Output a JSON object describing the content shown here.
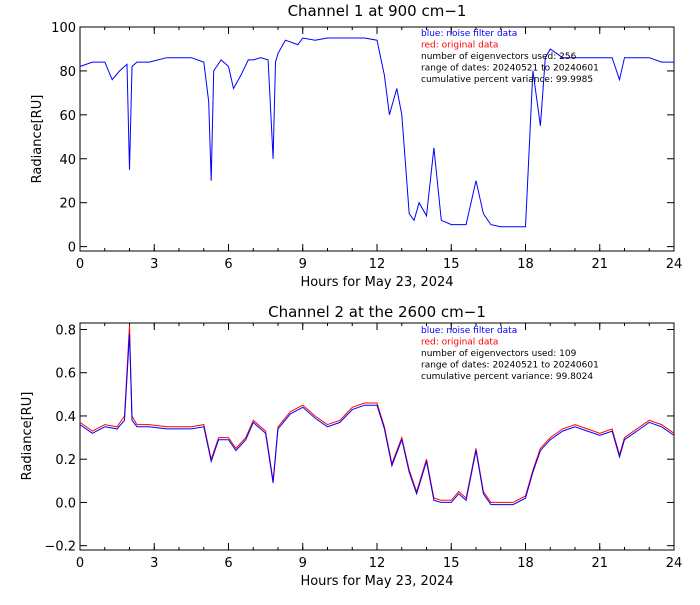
{
  "chart_data": [
    {
      "type": "line",
      "title": "Channel 1 at 900 cm−1",
      "xlabel": "Hours for May 23, 2024",
      "ylabel": "Radiance[RU]",
      "xlim": [
        0,
        24
      ],
      "ylim": [
        -2,
        100
      ],
      "xticks": [
        "0",
        "3",
        "6",
        "9",
        "12",
        "15",
        "18",
        "21",
        "24"
      ],
      "yticks": [
        "0",
        "20",
        "40",
        "60",
        "80",
        "100"
      ],
      "legend_position": "top-right",
      "annotations": [
        {
          "text": "blue: noise filter data",
          "color": "#0000ff"
        },
        {
          "text": "red: original data",
          "color": "#ff0000"
        },
        {
          "text": "number of eigenvectors used:       256",
          "color": "#000000"
        },
        {
          "text": "range of dates: 20240521 to 20240601",
          "color": "#000000"
        },
        {
          "text": "cumulative percent variance:  99.9985",
          "color": "#000000"
        }
      ],
      "series": [
        {
          "name": "blue: noise filter data",
          "color": "#0000ff",
          "x": [
            0,
            0.5,
            1.0,
            1.3,
            1.6,
            1.9,
            2.0,
            2.1,
            2.3,
            2.8,
            3.5,
            4.5,
            5.0,
            5.2,
            5.3,
            5.4,
            5.7,
            6.0,
            6.2,
            6.5,
            6.8,
            7.0,
            7.3,
            7.6,
            7.8,
            7.9,
            8.0,
            8.3,
            8.8,
            9.0,
            9.5,
            10.0,
            10.5,
            11.0,
            11.5,
            12.0,
            12.3,
            12.5,
            12.8,
            13.0,
            13.3,
            13.5,
            13.7,
            14.0,
            14.3,
            14.6,
            15.0,
            15.3,
            15.6,
            16.0,
            16.3,
            16.6,
            17.0,
            17.5,
            17.8,
            18.0,
            18.3,
            18.6,
            18.8,
            19.0,
            19.5,
            20.0,
            20.5,
            21.0,
            21.5,
            21.8,
            22.0,
            22.5,
            23.0,
            23.5,
            24.0
          ],
          "values": [
            82,
            84,
            84,
            76,
            80,
            83,
            35,
            82,
            84,
            84,
            86,
            86,
            84,
            66,
            30,
            80,
            85,
            82,
            72,
            78,
            85,
            85,
            86,
            85,
            40,
            84,
            88,
            94,
            92,
            95,
            94,
            95,
            95,
            95,
            95,
            94,
            78,
            60,
            72,
            60,
            15,
            12,
            20,
            14,
            45,
            12,
            10,
            10,
            10,
            30,
            15,
            10,
            9,
            9,
            9,
            9,
            80,
            55,
            86,
            90,
            86,
            86,
            86,
            86,
            86,
            76,
            86,
            86,
            86,
            84,
            84
          ]
        }
      ]
    },
    {
      "type": "line",
      "title": "Channel 2 at the 2600 cm−1",
      "xlabel": "Hours for May 23, 2024",
      "ylabel": "Radiance[RU]",
      "xlim": [
        0,
        24
      ],
      "ylim": [
        -0.22,
        0.83
      ],
      "xticks": [
        "0",
        "3",
        "6",
        "9",
        "12",
        "15",
        "18",
        "21",
        "24"
      ],
      "yticks": [
        "−0.2",
        "0.0",
        "0.2",
        "0.4",
        "0.6",
        "0.8"
      ],
      "legend_position": "top-right",
      "annotations": [
        {
          "text": "blue: noise filter data",
          "color": "#0000ff"
        },
        {
          "text": "red: original data",
          "color": "#ff0000"
        },
        {
          "text": "number of eigenvectors used:       109",
          "color": "#000000"
        },
        {
          "text": "range of dates: 20240521 to 20240601",
          "color": "#000000"
        },
        {
          "text": "cumulative percent variance:  99.8024",
          "color": "#000000"
        }
      ],
      "series": [
        {
          "name": "red: original data",
          "color": "#ff0000",
          "x": [
            0,
            0.5,
            1.0,
            1.5,
            1.8,
            2.0,
            2.1,
            2.3,
            2.8,
            3.5,
            4.5,
            5.0,
            5.3,
            5.6,
            6.0,
            6.3,
            6.7,
            7.0,
            7.5,
            7.8,
            8.0,
            8.5,
            9.0,
            9.5,
            10.0,
            10.5,
            11.0,
            11.5,
            12.0,
            12.3,
            12.6,
            13.0,
            13.3,
            13.6,
            14.0,
            14.3,
            14.6,
            15.0,
            15.3,
            15.6,
            16.0,
            16.3,
            16.6,
            17.0,
            17.5,
            18.0,
            18.3,
            18.6,
            19.0,
            19.5,
            20.0,
            20.5,
            21.0,
            21.5,
            21.8,
            22.0,
            22.5,
            23.0,
            23.5,
            24.0
          ],
          "values": [
            0.37,
            0.33,
            0.36,
            0.35,
            0.4,
            0.82,
            0.4,
            0.36,
            0.36,
            0.35,
            0.35,
            0.36,
            0.2,
            0.3,
            0.3,
            0.25,
            0.3,
            0.38,
            0.33,
            0.1,
            0.35,
            0.42,
            0.45,
            0.4,
            0.36,
            0.38,
            0.44,
            0.46,
            0.46,
            0.35,
            0.18,
            0.3,
            0.15,
            0.05,
            0.2,
            0.02,
            0.01,
            0.01,
            0.05,
            0.02,
            0.25,
            0.05,
            0.0,
            0.0,
            0.0,
            0.03,
            0.15,
            0.25,
            0.3,
            0.34,
            0.36,
            0.34,
            0.32,
            0.34,
            0.22,
            0.3,
            0.34,
            0.38,
            0.36,
            0.32
          ]
        },
        {
          "name": "blue: noise filter data",
          "color": "#0000ff",
          "x": [
            0,
            0.5,
            1.0,
            1.5,
            1.8,
            2.0,
            2.1,
            2.3,
            2.8,
            3.5,
            4.5,
            5.0,
            5.3,
            5.6,
            6.0,
            6.3,
            6.7,
            7.0,
            7.5,
            7.8,
            8.0,
            8.5,
            9.0,
            9.5,
            10.0,
            10.5,
            11.0,
            11.5,
            12.0,
            12.3,
            12.6,
            13.0,
            13.3,
            13.6,
            14.0,
            14.3,
            14.6,
            15.0,
            15.3,
            15.6,
            16.0,
            16.3,
            16.6,
            17.0,
            17.5,
            18.0,
            18.3,
            18.6,
            19.0,
            19.5,
            20.0,
            20.5,
            21.0,
            21.5,
            21.8,
            22.0,
            22.5,
            23.0,
            23.5,
            24.0
          ],
          "values": [
            0.36,
            0.32,
            0.35,
            0.34,
            0.38,
            0.78,
            0.38,
            0.35,
            0.35,
            0.34,
            0.34,
            0.35,
            0.19,
            0.29,
            0.29,
            0.24,
            0.29,
            0.37,
            0.32,
            0.09,
            0.34,
            0.41,
            0.44,
            0.39,
            0.35,
            0.37,
            0.43,
            0.45,
            0.45,
            0.34,
            0.17,
            0.29,
            0.14,
            0.04,
            0.19,
            0.01,
            0.0,
            0.0,
            0.04,
            0.01,
            0.24,
            0.04,
            -0.01,
            -0.01,
            -0.01,
            0.02,
            0.14,
            0.24,
            0.29,
            0.33,
            0.35,
            0.33,
            0.31,
            0.33,
            0.21,
            0.29,
            0.33,
            0.37,
            0.35,
            0.31
          ]
        }
      ]
    }
  ]
}
